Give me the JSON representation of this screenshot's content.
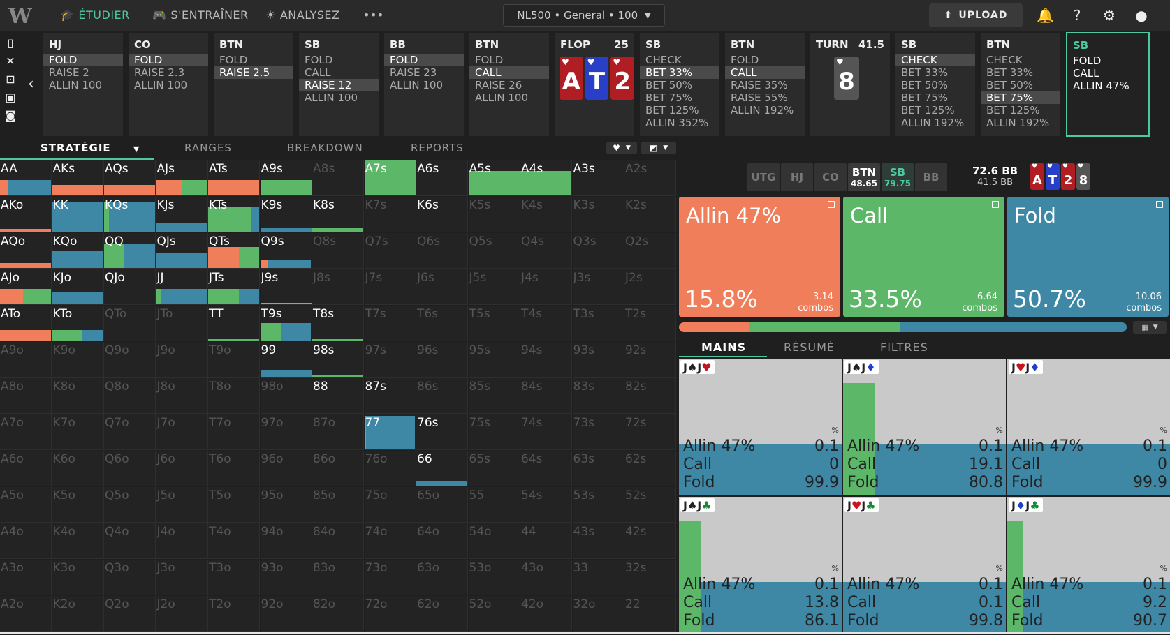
{
  "nav": {
    "logo": "W",
    "items": [
      {
        "label": "ÉTUDIER",
        "active": true,
        "icon": "graduation-cap-icon"
      },
      {
        "label": "S'ENTRAÎNER",
        "active": false,
        "icon": "gamepad-icon"
      },
      {
        "label": "ANALYSEZ",
        "active": false,
        "icon": "lightbulb-icon"
      }
    ],
    "more": "•••",
    "selector": "NL500 • General • 100",
    "upload": "UPLOAD"
  },
  "actions": [
    {
      "pos": "HJ",
      "options": [
        {
          "t": "FOLD",
          "sel": true
        },
        {
          "t": "RAISE 2"
        },
        {
          "t": "ALLIN 100"
        }
      ]
    },
    {
      "pos": "CO",
      "options": [
        {
          "t": "FOLD",
          "sel": true
        },
        {
          "t": "RAISE 2.3"
        },
        {
          "t": "ALLIN 100"
        }
      ]
    },
    {
      "pos": "BTN",
      "options": [
        {
          "t": "FOLD"
        },
        {
          "t": "RAISE 2.5",
          "sel": true
        }
      ]
    },
    {
      "pos": "SB",
      "options": [
        {
          "t": "FOLD"
        },
        {
          "t": "CALL"
        },
        {
          "t": "RAISE 12",
          "sel": true
        },
        {
          "t": "ALLIN 100"
        }
      ]
    },
    {
      "pos": "BB",
      "options": [
        {
          "t": "FOLD",
          "sel": true
        },
        {
          "t": "RAISE 23"
        },
        {
          "t": "ALLIN 100"
        }
      ]
    },
    {
      "pos": "BTN",
      "options": [
        {
          "t": "FOLD"
        },
        {
          "t": "CALL",
          "sel": true
        },
        {
          "t": "RAISE 26"
        },
        {
          "t": "ALLIN 100"
        }
      ]
    },
    {
      "board": true,
      "pos": "FLOP",
      "pot": "25",
      "cards": [
        {
          "r": "A",
          "c": "#b01e23"
        },
        {
          "r": "T",
          "c": "#2a3fc8"
        },
        {
          "r": "2",
          "c": "#b01e23"
        }
      ]
    },
    {
      "pos": "SB",
      "options": [
        {
          "t": "CHECK"
        },
        {
          "t": "BET 33%",
          "sel": true
        },
        {
          "t": "BET 50%"
        },
        {
          "t": "BET 75%"
        },
        {
          "t": "BET 125%"
        },
        {
          "t": "ALLIN 352%"
        }
      ]
    },
    {
      "pos": "BTN",
      "options": [
        {
          "t": "FOLD"
        },
        {
          "t": "CALL",
          "sel": true
        },
        {
          "t": "RAISE 35%"
        },
        {
          "t": "RAISE 55%"
        },
        {
          "t": "ALLIN 192%"
        }
      ]
    },
    {
      "board": true,
      "pos": "TURN",
      "pot": "41.5",
      "cards": [
        {
          "r": "8",
          "c": "#555555"
        }
      ]
    },
    {
      "pos": "SB",
      "options": [
        {
          "t": "CHECK",
          "sel": true
        },
        {
          "t": "BET 33%"
        },
        {
          "t": "BET 50%"
        },
        {
          "t": "BET 75%"
        },
        {
          "t": "BET 125%"
        },
        {
          "t": "ALLIN 192%"
        }
      ]
    },
    {
      "pos": "BTN",
      "options": [
        {
          "t": "CHECK"
        },
        {
          "t": "BET 33%"
        },
        {
          "t": "BET 50%"
        },
        {
          "t": "BET 75%",
          "sel": true
        },
        {
          "t": "BET 125%"
        },
        {
          "t": "ALLIN 192%"
        }
      ]
    },
    {
      "pos": "SB",
      "current": true,
      "options": [
        {
          "t": "FOLD"
        },
        {
          "t": "CALL"
        },
        {
          "t": "ALLIN 47%"
        }
      ]
    }
  ],
  "tabs": [
    "STRATÉGIE",
    "RANGES",
    "BREAKDOWN",
    "REPORTS"
  ],
  "colors": {
    "allin": "#f07e5a",
    "call": "#5cb868",
    "fold": "#3e88a6"
  },
  "grid": [
    [
      "AA",
      "AKs",
      "AQs",
      "AJs",
      "ATs",
      "A9s",
      "A8s",
      "A7s",
      "A6s",
      "A5s",
      "A4s",
      "A3s",
      "A2s"
    ],
    [
      "AKo",
      "KK",
      "KQs",
      "KJs",
      "KTs",
      "K9s",
      "K8s",
      "K7s",
      "K6s",
      "K5s",
      "K4s",
      "K3s",
      "K2s"
    ],
    [
      "AQo",
      "KQo",
      "QQ",
      "QJs",
      "QTs",
      "Q9s",
      "Q8s",
      "Q7s",
      "Q6s",
      "Q5s",
      "Q4s",
      "Q3s",
      "Q2s"
    ],
    [
      "AJo",
      "KJo",
      "QJo",
      "JJ",
      "JTs",
      "J9s",
      "J8s",
      "J7s",
      "J6s",
      "J5s",
      "J4s",
      "J3s",
      "J2s"
    ],
    [
      "ATo",
      "KTo",
      "QTo",
      "JTo",
      "TT",
      "T9s",
      "T8s",
      "T7s",
      "T6s",
      "T5s",
      "T4s",
      "T3s",
      "T2s"
    ],
    [
      "A9o",
      "K9o",
      "Q9o",
      "J9o",
      "T9o",
      "99",
      "98s",
      "97s",
      "96s",
      "95s",
      "94s",
      "93s",
      "92s"
    ],
    [
      "A8o",
      "K8o",
      "Q8o",
      "J8o",
      "T8o",
      "98o",
      "88",
      "87s",
      "86s",
      "85s",
      "84s",
      "83s",
      "82s"
    ],
    [
      "A7o",
      "K7o",
      "Q7o",
      "J7o",
      "T7o",
      "97o",
      "87o",
      "77",
      "76s",
      "75s",
      "74s",
      "73s",
      "72s"
    ],
    [
      "A6o",
      "K6o",
      "Q6o",
      "J6o",
      "T6o",
      "96o",
      "86o",
      "76o",
      "66",
      "65s",
      "64s",
      "63s",
      "62s"
    ],
    [
      "A5o",
      "K5o",
      "Q5o",
      "J5o",
      "T5o",
      "95o",
      "85o",
      "75o",
      "65o",
      "55",
      "54s",
      "53s",
      "52s"
    ],
    [
      "A4o",
      "K4o",
      "Q4o",
      "J4o",
      "T4o",
      "94o",
      "84o",
      "74o",
      "64o",
      "54o",
      "44",
      "43s",
      "42s"
    ],
    [
      "A3o",
      "K3o",
      "Q3o",
      "J3o",
      "T3o",
      "93o",
      "83o",
      "73o",
      "63o",
      "53o",
      "43o",
      "33",
      "32s"
    ],
    [
      "A2o",
      "K2o",
      "Q2o",
      "J2o",
      "T2o",
      "92o",
      "82o",
      "72o",
      "62o",
      "52o",
      "42o",
      "32o",
      "22"
    ]
  ],
  "cellStrategy": {
    "AA": {
      "h": 0.45,
      "a": 0.15,
      "c": 0.0,
      "f": 0.85
    },
    "AKs": {
      "h": 0.3,
      "a": 1.0,
      "c": 0,
      "f": 0
    },
    "AQs": {
      "h": 0.3,
      "a": 1.0,
      "c": 0,
      "f": 0
    },
    "AJs": {
      "h": 0.45,
      "a": 0.5,
      "c": 0.5,
      "f": 0
    },
    "ATs": {
      "h": 0.45,
      "a": 1.0,
      "c": 0,
      "f": 0
    },
    "A9s": {
      "h": 0.45,
      "a": 0,
      "c": 1.0,
      "f": 0
    },
    "A7s": {
      "h": 1.0,
      "a": 0,
      "c": 1.0,
      "f": 0
    },
    "A5s": {
      "h": 0.7,
      "a": 0,
      "c": 1.0,
      "f": 0
    },
    "A4s": {
      "h": 0.7,
      "a": 0,
      "c": 1.0,
      "f": 0
    },
    "A3s": {
      "h": 0.03,
      "a": 0,
      "c": 1.0,
      "f": 0
    },
    "AKo": {
      "h": 0.08,
      "a": 1.0,
      "c": 0,
      "f": 0
    },
    "KK": {
      "h": 0.85,
      "a": 0,
      "c": 0,
      "f": 1.0
    },
    "KQs": {
      "h": 0.85,
      "a": 0,
      "c": 0.1,
      "f": 0.9
    },
    "KJs": {
      "h": 0.25,
      "a": 0,
      "c": 0,
      "f": 1.0
    },
    "KTs": {
      "h": 0.7,
      "a": 0,
      "c": 0.85,
      "f": 0.15
    },
    "K9s": {
      "h": 0.1,
      "a": 0,
      "c": 0,
      "f": 1.0
    },
    "K8s": {
      "h": 0.1,
      "a": 0,
      "c": 1.0,
      "f": 0
    },
    "AQo": {
      "h": 0.15,
      "a": 1.0,
      "c": 0,
      "f": 0
    },
    "KQo": {
      "h": 0.5,
      "a": 0,
      "c": 0,
      "f": 1.0
    },
    "QQ": {
      "h": 0.7,
      "a": 0,
      "c": 0.4,
      "f": 0.6
    },
    "QJs": {
      "h": 0.45,
      "a": 0,
      "c": 0,
      "f": 1.0
    },
    "QTs": {
      "h": 0.6,
      "a": 0.6,
      "c": 0.4,
      "f": 0
    },
    "Q9s": {
      "h": 0.25,
      "a": 0.15,
      "c": 0,
      "f": 0.85
    },
    "AJo": {
      "h": 0.45,
      "a": 0.45,
      "c": 0.55,
      "f": 0
    },
    "KJo": {
      "h": 0.35,
      "a": 0,
      "c": 0,
      "f": 1.0
    },
    "JJ": {
      "h": 0.45,
      "a": 0,
      "c": 0.1,
      "f": 0.9
    },
    "JTs": {
      "h": 0.45,
      "a": 0,
      "c": 0.6,
      "f": 0.4
    },
    "J9s": {
      "h": 0.05,
      "a": 1.0,
      "c": 0,
      "f": 0
    },
    "ATo": {
      "h": 0.3,
      "a": 1.0,
      "c": 0,
      "f": 0
    },
    "KTo": {
      "h": 0.3,
      "a": 0,
      "c": 0.6,
      "f": 0.4
    },
    "TT": {
      "h": 0.05,
      "a": 0,
      "c": 1.0,
      "f": 0
    },
    "T9s": {
      "h": 0.5,
      "a": 0,
      "c": 0.4,
      "f": 0.6
    },
    "T8s": {
      "h": 0.05,
      "a": 0,
      "c": 1.0,
      "f": 0
    },
    "99": {
      "h": 0.2,
      "a": 0,
      "c": 0,
      "f": 1.0
    },
    "98s": {
      "h": 0.05,
      "a": 0,
      "c": 1.0,
      "f": 0
    },
    "88": {
      "h": 0,
      "a": 0,
      "c": 0,
      "f": 0
    },
    "87s": {
      "h": 0,
      "a": 0,
      "c": 0,
      "f": 0
    },
    "77": {
      "h": 0.97,
      "a": 0,
      "c": 0.03,
      "f": 0.97
    },
    "76s": {
      "h": 0.03,
      "a": 0,
      "c": 1.0,
      "f": 0
    },
    "66": {
      "h": 0.12,
      "a": 0,
      "c": 0,
      "f": 1.0
    }
  },
  "actives": [
    "AA",
    "AKs",
    "AQs",
    "AJs",
    "ATs",
    "A9s",
    "A7s",
    "A6s",
    "A5s",
    "A4s",
    "A3s",
    "AKo",
    "KK",
    "KQs",
    "KJs",
    "KTs",
    "K9s",
    "K8s",
    "K6s",
    "AQo",
    "KQo",
    "QQ",
    "QJs",
    "QTs",
    "Q9s",
    "AJo",
    "KJo",
    "QJo",
    "JJ",
    "JTs",
    "J9s",
    "ATo",
    "KTo",
    "TT",
    "T9s",
    "T8s",
    "99",
    "98s",
    "88",
    "87s",
    "77",
    "76s",
    "66"
  ],
  "right": {
    "positions": [
      {
        "n": "UTG",
        "s": ""
      },
      {
        "n": "HJ",
        "s": ""
      },
      {
        "n": "CO",
        "s": ""
      },
      {
        "n": "BTN",
        "s": "48.65",
        "c": "#ffffff",
        "bg": "#3a3a3a"
      },
      {
        "n": "SB",
        "s": "79.75",
        "c": "#4cc9a0",
        "bg": "#2f3d38"
      },
      {
        "n": "BB",
        "s": ""
      }
    ],
    "stack": "72.6 BB",
    "stack_sub": "41.5 BB",
    "board": [
      {
        "r": "A",
        "c": "#b01e23"
      },
      {
        "r": "T",
        "c": "#2a3fc8"
      },
      {
        "r": "2",
        "c": "#b01e23"
      },
      {
        "r": "8",
        "c": "#555555"
      }
    ],
    "boxes": [
      {
        "title": "Allin 47%",
        "pct": "15.8%",
        "combos": "3.14",
        "unit": "combos",
        "color": "#f07e5a"
      },
      {
        "title": "Call",
        "pct": "33.5%",
        "combos": "6.64",
        "unit": "combos",
        "color": "#5cb868"
      },
      {
        "title": "Fold",
        "pct": "50.7%",
        "combos": "10.06",
        "unit": "combos",
        "color": "#3e88a6"
      }
    ],
    "freq": [
      0.158,
      0.335,
      0.507
    ],
    "subtabs": [
      "MAINS",
      "RÉSUMÉ",
      "FILTRES"
    ],
    "hands": [
      {
        "combo": [
          [
            "J",
            "♠",
            "#222"
          ],
          [
            "J",
            "♥",
            "#c8141e"
          ]
        ],
        "pct": "%",
        "allin": "0.1",
        "call": "0",
        "fold": "99.9",
        "a": 0.001,
        "c": 0.0,
        "f": 0.999,
        "la": "Allin 47%",
        "lc": "Call",
        "lf": "Fold"
      },
      {
        "combo": [
          [
            "J",
            "♠",
            "#222"
          ],
          [
            "J",
            "♦",
            "#1f3fc8"
          ]
        ],
        "pct": "%",
        "allin": "0.1",
        "call": "19.1",
        "fold": "80.8",
        "a": 0.001,
        "c": 0.191,
        "f": 0.808,
        "la": "Allin 47%",
        "lc": "Call",
        "lf": "Fold"
      },
      {
        "combo": [
          [
            "J",
            "♥",
            "#c8141e"
          ],
          [
            "J",
            "♦",
            "#1f3fc8"
          ]
        ],
        "pct": "%",
        "allin": "0.1",
        "call": "0",
        "fold": "99.9",
        "a": 0.001,
        "c": 0.0,
        "f": 0.999,
        "la": "Allin 47%",
        "lc": "Call",
        "lf": "Fold"
      },
      {
        "combo": [
          [
            "J",
            "♠",
            "#222"
          ],
          [
            "J",
            "♣",
            "#1a8a3a"
          ]
        ],
        "pct": "%",
        "allin": "0.1",
        "call": "13.8",
        "fold": "86.1",
        "a": 0.001,
        "c": 0.138,
        "f": 0.861,
        "la": "Allin 47%",
        "lc": "Call",
        "lf": "Fold"
      },
      {
        "combo": [
          [
            "J",
            "♥",
            "#c8141e"
          ],
          [
            "J",
            "♣",
            "#1a8a3a"
          ]
        ],
        "pct": "%",
        "allin": "0.1",
        "call": "0.1",
        "fold": "99.8",
        "a": 0.001,
        "c": 0.001,
        "f": 0.998,
        "la": "Allin 47%",
        "lc": "Call",
        "lf": "Fold"
      },
      {
        "combo": [
          [
            "J",
            "♦",
            "#1f3fc8"
          ],
          [
            "J",
            "♣",
            "#1a8a3a"
          ]
        ],
        "pct": "%",
        "allin": "0.1",
        "call": "9.2",
        "fold": "90.7",
        "a": 0.001,
        "c": 0.092,
        "f": 0.907,
        "la": "Allin 47%",
        "lc": "Call",
        "lf": "Fold"
      }
    ]
  }
}
